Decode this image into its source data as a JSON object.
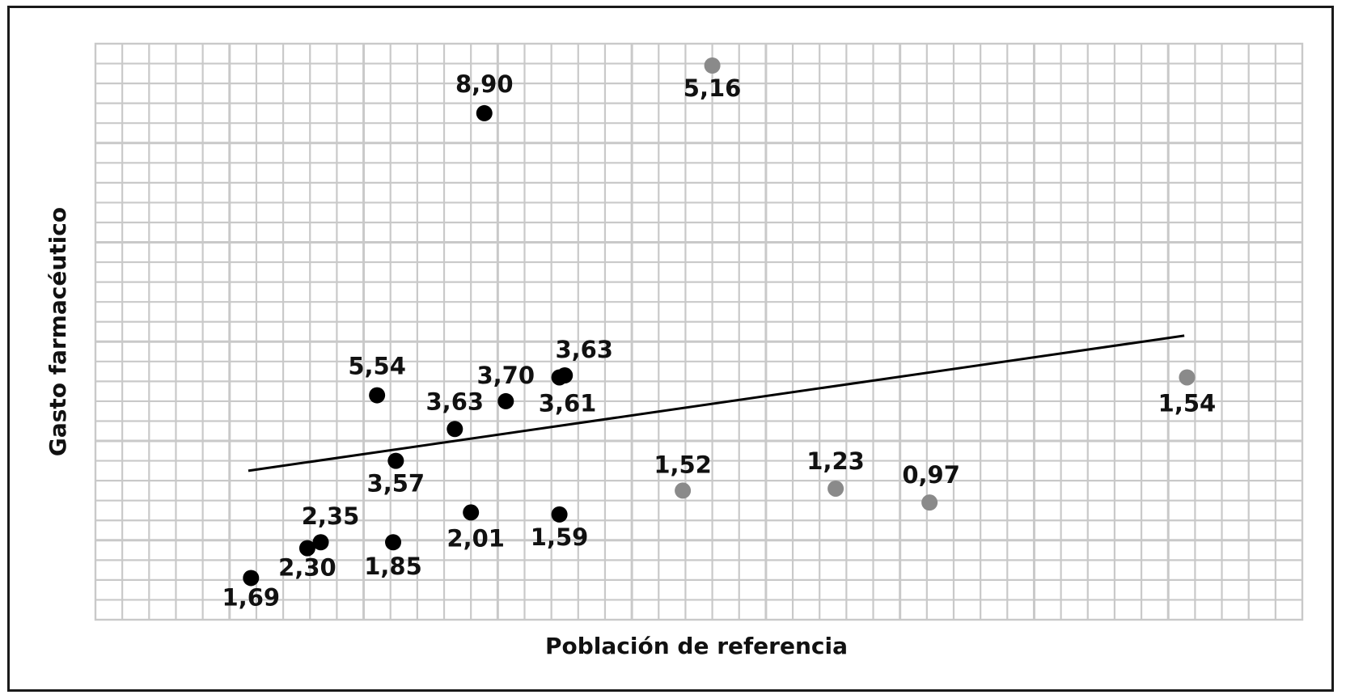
{
  "chart_data": {
    "type": "scatter",
    "title": "",
    "xlabel": "Población de referencia",
    "ylabel": "Gasto farmacéutico",
    "grid": true,
    "legend": "none",
    "axis_ticks_shown": false,
    "xlim": [
      0,
      45
    ],
    "ylim": [
      0,
      29
    ],
    "colors": {
      "dark": "#000000",
      "gray": "#8a8a8a",
      "grid": "#c9c9c9",
      "line": "#000000"
    },
    "series": [
      {
        "color": "dark",
        "points": [
          {
            "x": 5.8,
            "y": 2.1,
            "label": "1,69"
          },
          {
            "x": 7.9,
            "y": 3.6,
            "label": "2,30"
          },
          {
            "x": 8.4,
            "y": 3.9,
            "label": "2,35"
          },
          {
            "x": 11.1,
            "y": 3.9,
            "label": "1,85"
          },
          {
            "x": 11.2,
            "y": 8.0,
            "label": "3,57"
          },
          {
            "x": 10.5,
            "y": 11.3,
            "label": "5,54"
          },
          {
            "x": 13.4,
            "y": 9.6,
            "label": "3,63"
          },
          {
            "x": 14.0,
            "y": 5.4,
            "label": "2,01"
          },
          {
            "x": 14.5,
            "y": 25.5,
            "label": "8,90"
          },
          {
            "x": 15.3,
            "y": 11.0,
            "label": "3,70"
          },
          {
            "x": 17.3,
            "y": 12.2,
            "label": "3,61"
          },
          {
            "x": 17.5,
            "y": 12.3,
            "label": "3,63"
          },
          {
            "x": 17.3,
            "y": 5.3,
            "label": "1,59"
          }
        ]
      },
      {
        "color": "gray",
        "points": [
          {
            "x": 23.0,
            "y": 27.9,
            "label": "5,16"
          },
          {
            "x": 21.9,
            "y": 6.5,
            "label": "1,52"
          },
          {
            "x": 27.6,
            "y": 6.6,
            "label": "1,23"
          },
          {
            "x": 31.1,
            "y": 5.9,
            "label": "0,97"
          },
          {
            "x": 40.7,
            "y": 12.2,
            "label": "1,54"
          }
        ]
      }
    ],
    "trend_line": {
      "x": [
        5.7,
        40.6
      ],
      "y": [
        7.5,
        14.3
      ]
    }
  }
}
